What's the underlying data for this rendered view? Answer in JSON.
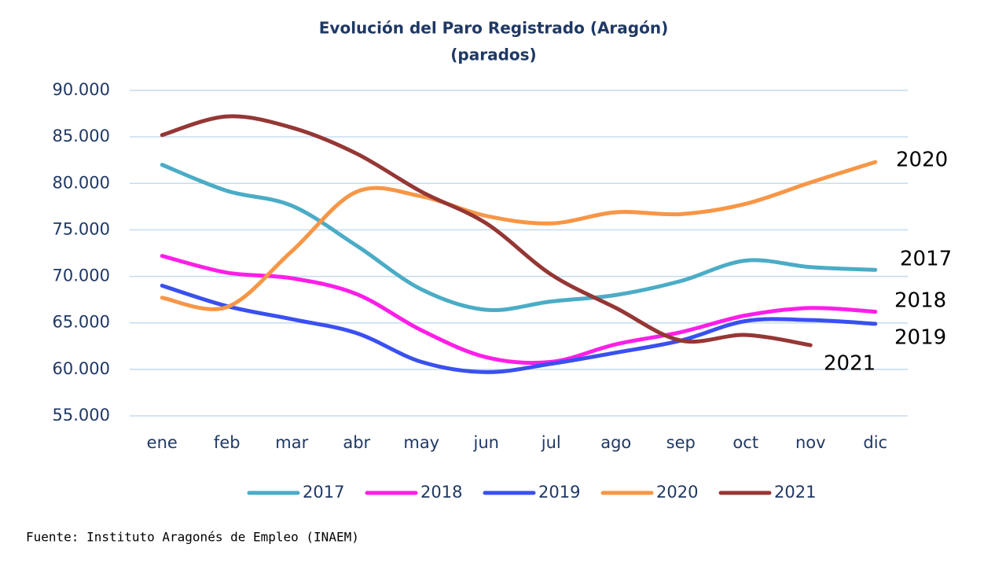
{
  "chart_data": {
    "type": "line",
    "title": "Evolución del Paro Registrado (Aragón)",
    "subtitle": "(parados)",
    "source": "Fuente: Instituto Aragonés de Empleo (INAEM)",
    "categories": [
      "ene",
      "feb",
      "mar",
      "abr",
      "may",
      "jun",
      "jul",
      "ago",
      "sep",
      "oct",
      "nov",
      "dic"
    ],
    "ylim": [
      55000,
      90000
    ],
    "yticks": [
      {
        "value": 55000,
        "label": "55.000"
      },
      {
        "value": 60000,
        "label": "60.000"
      },
      {
        "value": 65000,
        "label": "65.000"
      },
      {
        "value": 70000,
        "label": "70.000"
      },
      {
        "value": 75000,
        "label": "75.000"
      },
      {
        "value": 80000,
        "label": "80.000"
      },
      {
        "value": 85000,
        "label": "85.000"
      },
      {
        "value": 90000,
        "label": "90.000"
      }
    ],
    "grid": true,
    "legend": "bottom",
    "series": [
      {
        "name": "2017",
        "color": "#4bacc6",
        "values": [
          82000,
          79200,
          77600,
          73300,
          68600,
          66400,
          67300,
          68000,
          69500,
          71700,
          71000,
          70700
        ]
      },
      {
        "name": "2018",
        "color": "#ff1ee8",
        "values": [
          72200,
          70400,
          69800,
          68100,
          64200,
          61300,
          60800,
          62700,
          64000,
          65800,
          66600,
          66200
        ]
      },
      {
        "name": "2019",
        "color": "#3a50ef",
        "values": [
          69000,
          66800,
          65400,
          63900,
          60800,
          59700,
          60600,
          61800,
          63100,
          65200,
          65300,
          64900
        ]
      },
      {
        "name": "2020",
        "color": "#f79646",
        "values": [
          67700,
          66700,
          72700,
          79100,
          78600,
          76500,
          75700,
          76900,
          76700,
          77800,
          80100,
          82300
        ]
      },
      {
        "name": "2021",
        "color": "#953735",
        "values": [
          85200,
          87200,
          86000,
          83200,
          79100,
          75700,
          70200,
          66600,
          63100,
          63700,
          62600,
          null
        ]
      }
    ]
  }
}
